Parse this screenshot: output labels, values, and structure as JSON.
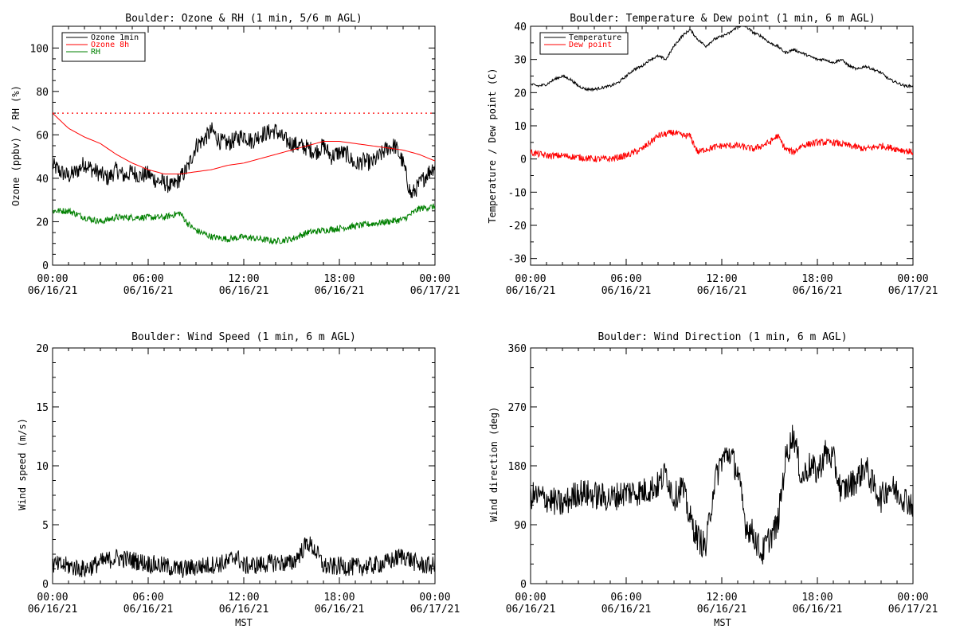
{
  "chart_data": [
    {
      "id": "ozone_rh",
      "type": "line",
      "title": "Boulder: Ozone & RH (1 min, 5/6 m AGL)",
      "ylabel": "Ozone (ppbv) / RH (%)",
      "xlabel": "",
      "ylim": [
        0,
        110
      ],
      "yticks": [
        0,
        20,
        40,
        60,
        80,
        100
      ],
      "xlim": [
        0,
        24
      ],
      "xticks": [
        {
          "x": 0,
          "time": "00:00",
          "date": "06/16/21"
        },
        {
          "x": 6,
          "time": "06:00",
          "date": "06/16/21"
        },
        {
          "x": 12,
          "time": "12:00",
          "date": "06/16/21"
        },
        {
          "x": 18,
          "time": "18:00",
          "date": "06/16/21"
        },
        {
          "x": 24,
          "time": "00:00",
          "date": "06/17/21"
        }
      ],
      "threshold": {
        "value": 70,
        "color": "#ff0000",
        "style": "dotted"
      },
      "legend": {
        "position": "top-left",
        "entries": [
          {
            "label": "Ozone 1min",
            "color": "#000000"
          },
          {
            "label": "Ozone 8h",
            "color": "#ff0000"
          },
          {
            "label": "RH",
            "color": "#008000"
          }
        ]
      },
      "series": [
        {
          "name": "Ozone 1min",
          "color": "#000000",
          "noise": 4,
          "x": [
            0,
            0.5,
            1,
            1.5,
            2,
            2.5,
            3,
            3.5,
            4,
            4.5,
            5,
            5.5,
            6,
            6.5,
            7,
            7.5,
            8,
            8.5,
            9,
            9.5,
            10,
            10.5,
            11,
            11.5,
            12,
            12.5,
            13,
            13.5,
            14,
            14.5,
            15,
            15.5,
            16,
            16.5,
            17,
            17.5,
            18,
            18.5,
            19,
            19.5,
            20,
            20.5,
            21,
            21.5,
            22,
            22.5,
            23,
            23.5,
            24
          ],
          "y": [
            46,
            43,
            41,
            43,
            47,
            44,
            42,
            40,
            44,
            41,
            43,
            41,
            42,
            39,
            38,
            36,
            40,
            45,
            55,
            58,
            62,
            57,
            56,
            58,
            60,
            57,
            60,
            61,
            62,
            58,
            56,
            55,
            54,
            52,
            55,
            50,
            52,
            51,
            46,
            48,
            47,
            50,
            54,
            55,
            47,
            32,
            37,
            42,
            46
          ]
        },
        {
          "name": "Ozone 8h",
          "color": "#ff0000",
          "noise": 0,
          "x": [
            0,
            1,
            2,
            3,
            4,
            5,
            6,
            7,
            8,
            9,
            10,
            11,
            12,
            13,
            14,
            15,
            16,
            17,
            18,
            19,
            20,
            21,
            22,
            23,
            24
          ],
          "y": [
            70,
            63,
            59,
            56,
            51,
            47,
            44,
            42,
            42,
            43,
            44,
            46,
            47,
            49,
            51,
            53,
            55,
            57,
            57,
            56,
            55,
            54,
            53,
            51,
            48
          ]
        },
        {
          "name": "RH",
          "color": "#008000",
          "noise": 1.5,
          "x": [
            0,
            1,
            2,
            3,
            4,
            5,
            6,
            7,
            8,
            8.5,
            9,
            10,
            11,
            12,
            13,
            14,
            15,
            16,
            17,
            18,
            19,
            20,
            21,
            22,
            23,
            24
          ],
          "y": [
            25,
            25,
            22,
            20,
            22,
            22,
            22,
            22,
            24,
            19,
            16,
            13,
            12,
            13,
            12,
            11,
            12,
            15,
            16,
            17,
            18,
            19,
            20,
            21,
            26,
            27
          ]
        }
      ]
    },
    {
      "id": "temp_dew",
      "type": "line",
      "title": "Boulder: Temperature & Dew point (1 min, 6 m AGL)",
      "ylabel": "Temperature / Dew point (C)",
      "xlabel": "",
      "ylim": [
        -32,
        40
      ],
      "yticks": [
        -30,
        -20,
        -10,
        0,
        10,
        20,
        30,
        40
      ],
      "xlim": [
        0,
        24
      ],
      "xticks": [
        {
          "x": 0,
          "time": "00:00",
          "date": "06/16/21"
        },
        {
          "x": 6,
          "time": "06:00",
          "date": "06/16/21"
        },
        {
          "x": 12,
          "time": "12:00",
          "date": "06/16/21"
        },
        {
          "x": 18,
          "time": "18:00",
          "date": "06/16/21"
        },
        {
          "x": 24,
          "time": "00:00",
          "date": "06/17/21"
        }
      ],
      "legend": {
        "position": "top-left",
        "entries": [
          {
            "label": "Temperature",
            "color": "#000000"
          },
          {
            "label": "Dew point",
            "color": "#ff0000"
          }
        ]
      },
      "series": [
        {
          "name": "Temperature",
          "color": "#000000",
          "noise": 0.4,
          "x": [
            0,
            0.5,
            1,
            1.5,
            2,
            2.5,
            3,
            3.5,
            4,
            4.5,
            5,
            5.5,
            6,
            6.5,
            7,
            7.5,
            8,
            8.5,
            9,
            9.5,
            10,
            10.5,
            11,
            11.5,
            12,
            12.5,
            13,
            13.5,
            14,
            14.5,
            15,
            15.5,
            16,
            16.5,
            17,
            17.5,
            18,
            18.5,
            19,
            19.5,
            20,
            20.5,
            21,
            21.5,
            22,
            22.5,
            23,
            23.5,
            24
          ],
          "y": [
            22.5,
            22,
            22.5,
            24,
            25,
            24,
            22,
            21,
            21,
            21.5,
            22,
            23,
            25,
            27,
            28,
            30,
            31,
            30,
            34,
            37,
            39,
            36,
            34,
            36,
            37,
            38,
            40,
            40,
            38,
            37,
            35,
            34,
            32,
            33,
            32,
            31,
            30,
            30,
            29,
            30,
            28,
            27,
            28,
            27,
            26,
            24,
            23,
            22,
            22
          ]
        },
        {
          "name": "Dew point",
          "color": "#ff0000",
          "noise": 1.0,
          "x": [
            0,
            1,
            2,
            3,
            4,
            5,
            6,
            7,
            8,
            9,
            9.5,
            10,
            10.5,
            11,
            12,
            13,
            14,
            15,
            15.5,
            16,
            16.5,
            17,
            18,
            19,
            20,
            21,
            22,
            23,
            24
          ],
          "y": [
            2,
            1,
            1,
            0.5,
            0,
            0,
            1,
            3,
            7,
            8,
            7,
            7,
            2,
            3,
            4,
            4,
            3,
            5,
            7,
            3,
            2,
            4,
            5,
            5,
            4,
            3,
            4,
            3,
            2
          ]
        }
      ]
    },
    {
      "id": "wind_speed",
      "type": "line",
      "title": "Boulder: Wind Speed (1 min, 6 m AGL)",
      "ylabel": "Wind speed (m/s)",
      "xlabel": "MST",
      "ylim": [
        0,
        20
      ],
      "yticks": [
        0,
        5,
        10,
        15,
        20
      ],
      "xlim": [
        0,
        24
      ],
      "xticks": [
        {
          "x": 0,
          "time": "00:00",
          "date": "06/16/21"
        },
        {
          "x": 6,
          "time": "06:00",
          "date": "06/16/21"
        },
        {
          "x": 12,
          "time": "12:00",
          "date": "06/16/21"
        },
        {
          "x": 18,
          "time": "18:00",
          "date": "06/16/21"
        },
        {
          "x": 24,
          "time": "00:00",
          "date": "06/17/21"
        }
      ],
      "series": [
        {
          "name": "",
          "color": "#000000",
          "noise": 0.8,
          "floor": 0,
          "x": [
            0,
            1,
            2,
            3,
            4,
            5,
            6,
            7,
            8,
            9,
            10,
            11,
            11.5,
            12,
            13,
            14,
            15,
            15.5,
            16,
            16.5,
            17,
            17.5,
            18,
            19,
            20,
            21,
            22,
            23,
            24
          ],
          "y": [
            1.6,
            1.5,
            1.2,
            1.8,
            2.2,
            2.0,
            1.7,
            1.5,
            1.2,
            1.4,
            1.6,
            1.8,
            2.4,
            1.5,
            1.6,
            1.8,
            1.7,
            2.5,
            3.5,
            2.8,
            1.5,
            1.4,
            1.5,
            1.4,
            1.5,
            1.8,
            2.4,
            1.6,
            1.5
          ]
        }
      ]
    },
    {
      "id": "wind_dir",
      "type": "line",
      "title": "Boulder: Wind Direction (1 min, 6 m AGL)",
      "ylabel": "Wind direction (deg)",
      "xlabel": "MST",
      "ylim": [
        0,
        360
      ],
      "yticks": [
        0,
        90,
        180,
        270,
        360
      ],
      "xlim": [
        0,
        24
      ],
      "xticks": [
        {
          "x": 0,
          "time": "00:00",
          "date": "06/16/21"
        },
        {
          "x": 6,
          "time": "06:00",
          "date": "06/16/21"
        },
        {
          "x": 12,
          "time": "12:00",
          "date": "06/16/21"
        },
        {
          "x": 18,
          "time": "18:00",
          "date": "06/16/21"
        },
        {
          "x": 24,
          "time": "00:00",
          "date": "06/17/21"
        }
      ],
      "series": [
        {
          "name": "",
          "color": "#000000",
          "noise": 22,
          "floor": 8,
          "x": [
            0,
            1,
            2,
            3,
            4,
            5,
            6,
            7,
            8,
            8.5,
            9,
            9.5,
            10,
            10.5,
            11,
            11.5,
            12,
            12.5,
            13,
            13.5,
            14,
            14.5,
            15,
            15.5,
            16,
            16.5,
            17,
            17.5,
            18,
            18.5,
            19,
            19.5,
            20,
            20.5,
            21,
            21.5,
            22,
            22.5,
            23,
            23.5,
            24
          ],
          "y": [
            135,
            130,
            120,
            140,
            135,
            130,
            140,
            140,
            150,
            170,
            130,
            150,
            100,
            70,
            55,
            150,
            190,
            200,
            170,
            90,
            75,
            45,
            70,
            90,
            190,
            230,
            160,
            180,
            170,
            200,
            190,
            140,
            150,
            160,
            180,
            150,
            130,
            150,
            140,
            130,
            120
          ]
        }
      ]
    }
  ]
}
